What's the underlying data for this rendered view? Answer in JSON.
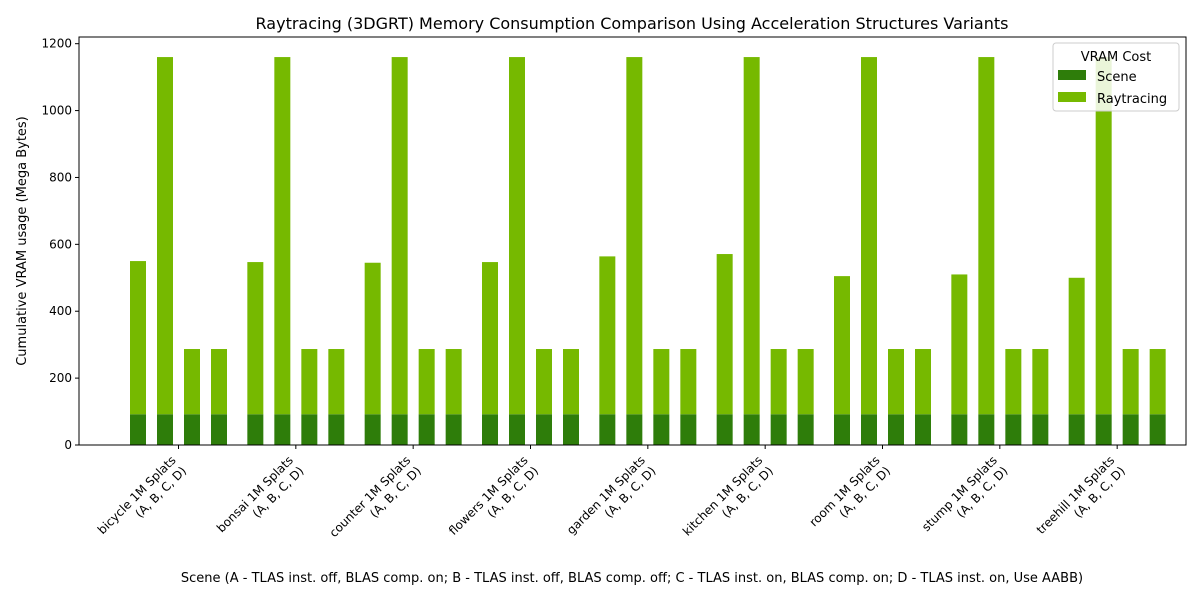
{
  "chart_data": {
    "type": "bar",
    "stacked": true,
    "title": "Raytracing (3DGRT) Memory Consumption Comparison Using Acceleration Structures Variants",
    "xlabel": "Scene (A - TLAS inst. off, BLAS comp. on; B - TLAS inst. off, BLAS comp. off; C - TLAS inst. on, BLAS comp. on; D - TLAS inst. on, Use AABB)",
    "ylabel": "Cumulative VRAM usage (Mega Bytes)",
    "ylim": [
      0,
      1220
    ],
    "yticks": [
      0,
      200,
      400,
      600,
      800,
      1000,
      1200
    ],
    "legend": {
      "title": "VRAM Cost",
      "position": "top-right"
    },
    "variants": [
      "A",
      "B",
      "C",
      "D"
    ],
    "groups": [
      {
        "label_line1": "bicycle 1M Splats",
        "label_line2": "(A, B, C, D)",
        "scene": [
          92,
          92,
          92,
          92
        ],
        "raytracing": [
          458,
          1068,
          195,
          195
        ]
      },
      {
        "label_line1": "bonsai 1M Splats",
        "label_line2": "(A, B, C, D)",
        "scene": [
          92,
          92,
          92,
          92
        ],
        "raytracing": [
          455,
          1068,
          195,
          195
        ]
      },
      {
        "label_line1": "counter 1M Splats",
        "label_line2": "(A, B, C, D)",
        "scene": [
          92,
          92,
          92,
          92
        ],
        "raytracing": [
          453,
          1068,
          195,
          195
        ]
      },
      {
        "label_line1": "flowers 1M Splats",
        "label_line2": "(A, B, C, D)",
        "scene": [
          92,
          92,
          92,
          92
        ],
        "raytracing": [
          455,
          1068,
          195,
          195
        ]
      },
      {
        "label_line1": "garden 1M Splats",
        "label_line2": "(A, B, C, D)",
        "scene": [
          92,
          92,
          92,
          92
        ],
        "raytracing": [
          472,
          1068,
          195,
          195
        ]
      },
      {
        "label_line1": "kitchen 1M Splats",
        "label_line2": "(A, B, C, D)",
        "scene": [
          92,
          92,
          92,
          92
        ],
        "raytracing": [
          479,
          1068,
          195,
          195
        ]
      },
      {
        "label_line1": "room 1M Splats",
        "label_line2": "(A, B, C, D)",
        "scene": [
          92,
          92,
          92,
          92
        ],
        "raytracing": [
          413,
          1068,
          195,
          195
        ]
      },
      {
        "label_line1": "stump 1M Splats",
        "label_line2": "(A, B, C, D)",
        "scene": [
          92,
          92,
          92,
          92
        ],
        "raytracing": [
          418,
          1068,
          195,
          195
        ]
      },
      {
        "label_line1": "treehill 1M Splats",
        "label_line2": "(A, B, C, D)",
        "scene": [
          92,
          92,
          92,
          92
        ],
        "raytracing": [
          408,
          1068,
          195,
          195
        ]
      }
    ],
    "series": [
      {
        "name": "Scene",
        "color": "#2e7d0a"
      },
      {
        "name": "Raytracing",
        "color": "#76b900"
      }
    ],
    "grid": false
  }
}
